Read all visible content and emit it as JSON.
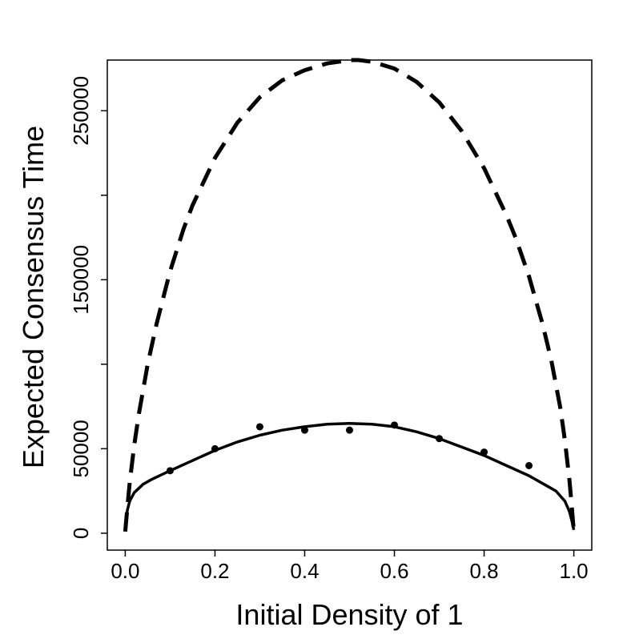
{
  "chart_data": {
    "type": "line",
    "title": "",
    "xlabel": "Initial Density of 1",
    "ylabel": "Expected Consensus Time",
    "xlim": [
      -0.04,
      1.04
    ],
    "ylim": [
      -10000,
      280000
    ],
    "x_ticks": [
      0.0,
      0.2,
      0.4,
      0.6,
      0.8,
      1.0
    ],
    "x_tick_labels": [
      "0.0",
      "0.2",
      "0.4",
      "0.6",
      "0.8",
      "1.0"
    ],
    "y_ticks": [
      0,
      50000,
      100000,
      150000,
      200000,
      250000
    ],
    "y_tick_labels": [
      "0",
      "50000",
      "",
      "150000",
      "",
      "250000"
    ],
    "grid": false,
    "legend": "none",
    "series": [
      {
        "style": "dashed",
        "x": [
          0.0,
          0.005,
          0.01,
          0.02,
          0.03,
          0.05,
          0.07,
          0.1,
          0.13,
          0.15,
          0.2,
          0.25,
          0.3,
          0.35,
          0.4,
          0.45,
          0.5,
          0.52,
          0.55,
          0.6,
          0.65,
          0.7,
          0.75,
          0.8,
          0.85,
          0.87,
          0.9,
          0.93,
          0.95,
          0.97,
          0.98,
          0.99,
          0.995,
          1.0
        ],
        "y": [
          1000,
          16000,
          30000,
          52000,
          70000,
          100000,
          124000,
          155000,
          180000,
          194000,
          222000,
          243000,
          258000,
          268000,
          274000,
          278000,
          280000,
          280000,
          279000,
          275000,
          267000,
          255000,
          238000,
          216000,
          188000,
          175000,
          152000,
          124000,
          102000,
          74000,
          55000,
          32000,
          17000,
          1000
        ]
      },
      {
        "style": "solid",
        "x": [
          0.0,
          0.005,
          0.01,
          0.02,
          0.04,
          0.06,
          0.1,
          0.15,
          0.2,
          0.25,
          0.3,
          0.35,
          0.4,
          0.45,
          0.5,
          0.55,
          0.6,
          0.65,
          0.7,
          0.75,
          0.8,
          0.85,
          0.9,
          0.94,
          0.96,
          0.98,
          0.99,
          0.995,
          1.0
        ],
        "y": [
          5000,
          14000,
          19000,
          24000,
          29000,
          32000,
          37000,
          43000,
          49000,
          54000,
          58000,
          61000,
          63000,
          64500,
          65000,
          64500,
          63000,
          60000,
          56000,
          51000,
          46000,
          40000,
          34000,
          28000,
          25000,
          19000,
          13000,
          8000,
          2000
        ]
      },
      {
        "style": "points",
        "x": [
          0.1,
          0.2,
          0.3,
          0.4,
          0.5,
          0.6,
          0.7,
          0.8,
          0.9
        ],
        "y": [
          37000,
          50000,
          63000,
          61000,
          61000,
          64000,
          56000,
          48000,
          40000
        ],
        "err": [
          1500,
          1500,
          2000,
          1500,
          1500,
          2000,
          1500,
          1500,
          1500
        ]
      }
    ]
  }
}
